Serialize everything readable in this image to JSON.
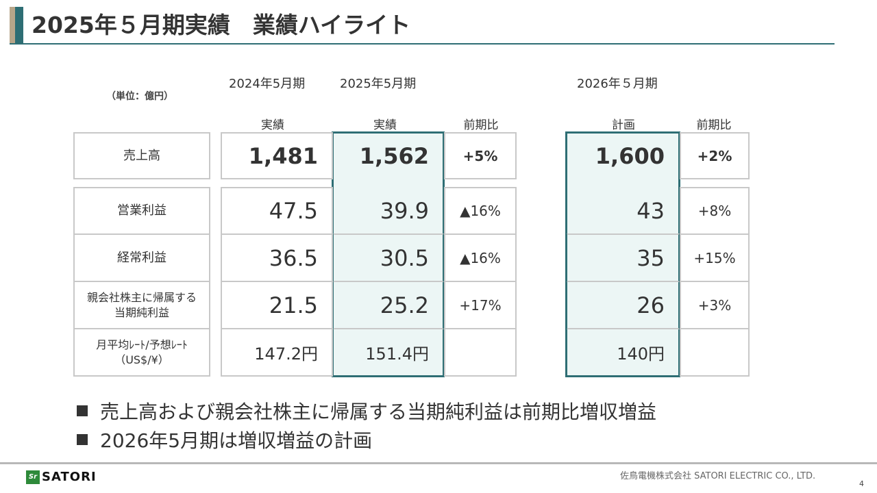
{
  "header": {
    "title": "2025年５月期実績　業績ハイライト"
  },
  "unit": "（単位：億円）",
  "periods": {
    "p2024": "2024年5月期",
    "p2025": "2025年5月期",
    "p2026": "2026年５月期"
  },
  "subheaders": {
    "actual_2024": "実績",
    "actual_2025": "実績",
    "yoy_2025": "前期比",
    "plan_2026": "計画",
    "yoy_2026": "前期比"
  },
  "rows": [
    {
      "label": "売上高",
      "v2024": "1,481",
      "v2025": "1,562",
      "yoy2025": "+5%",
      "v2026": "1,600",
      "yoy2026": "+2%"
    },
    {
      "label": "営業利益",
      "v2024": "47.5",
      "v2025": "39.9",
      "yoy2025": "▲16%",
      "v2026": "43",
      "yoy2026": "+8%"
    },
    {
      "label": "経常利益",
      "v2024": "36.5",
      "v2025": "30.5",
      "yoy2025": "▲16%",
      "v2026": "35",
      "yoy2026": "+15%"
    },
    {
      "label_line1": "親会社株主に帰属する",
      "label_line2": "当期純利益",
      "v2024": "21.5",
      "v2025": "25.2",
      "yoy2025": "+17%",
      "v2026": "26",
      "yoy2026": "+3%"
    },
    {
      "label_line1": "月平均ﾚｰﾄ/予想ﾚｰﾄ",
      "label_line2": "（US$/¥）",
      "v2024": "147.2円",
      "v2025": "151.4円",
      "yoy2025": "",
      "v2026": "140円",
      "yoy2026": ""
    }
  ],
  "bullets": [
    "売上高および親会社株主に帰属する当期純利益は前期比増収増益",
    "2026年5月期は増収増益の計画"
  ],
  "footer": {
    "company": "佐鳥電機株式会社  SATORI ELECTRIC CO., LTD.",
    "page": "4",
    "logo_text": "SATORI",
    "logo_mark": "Sr"
  }
}
